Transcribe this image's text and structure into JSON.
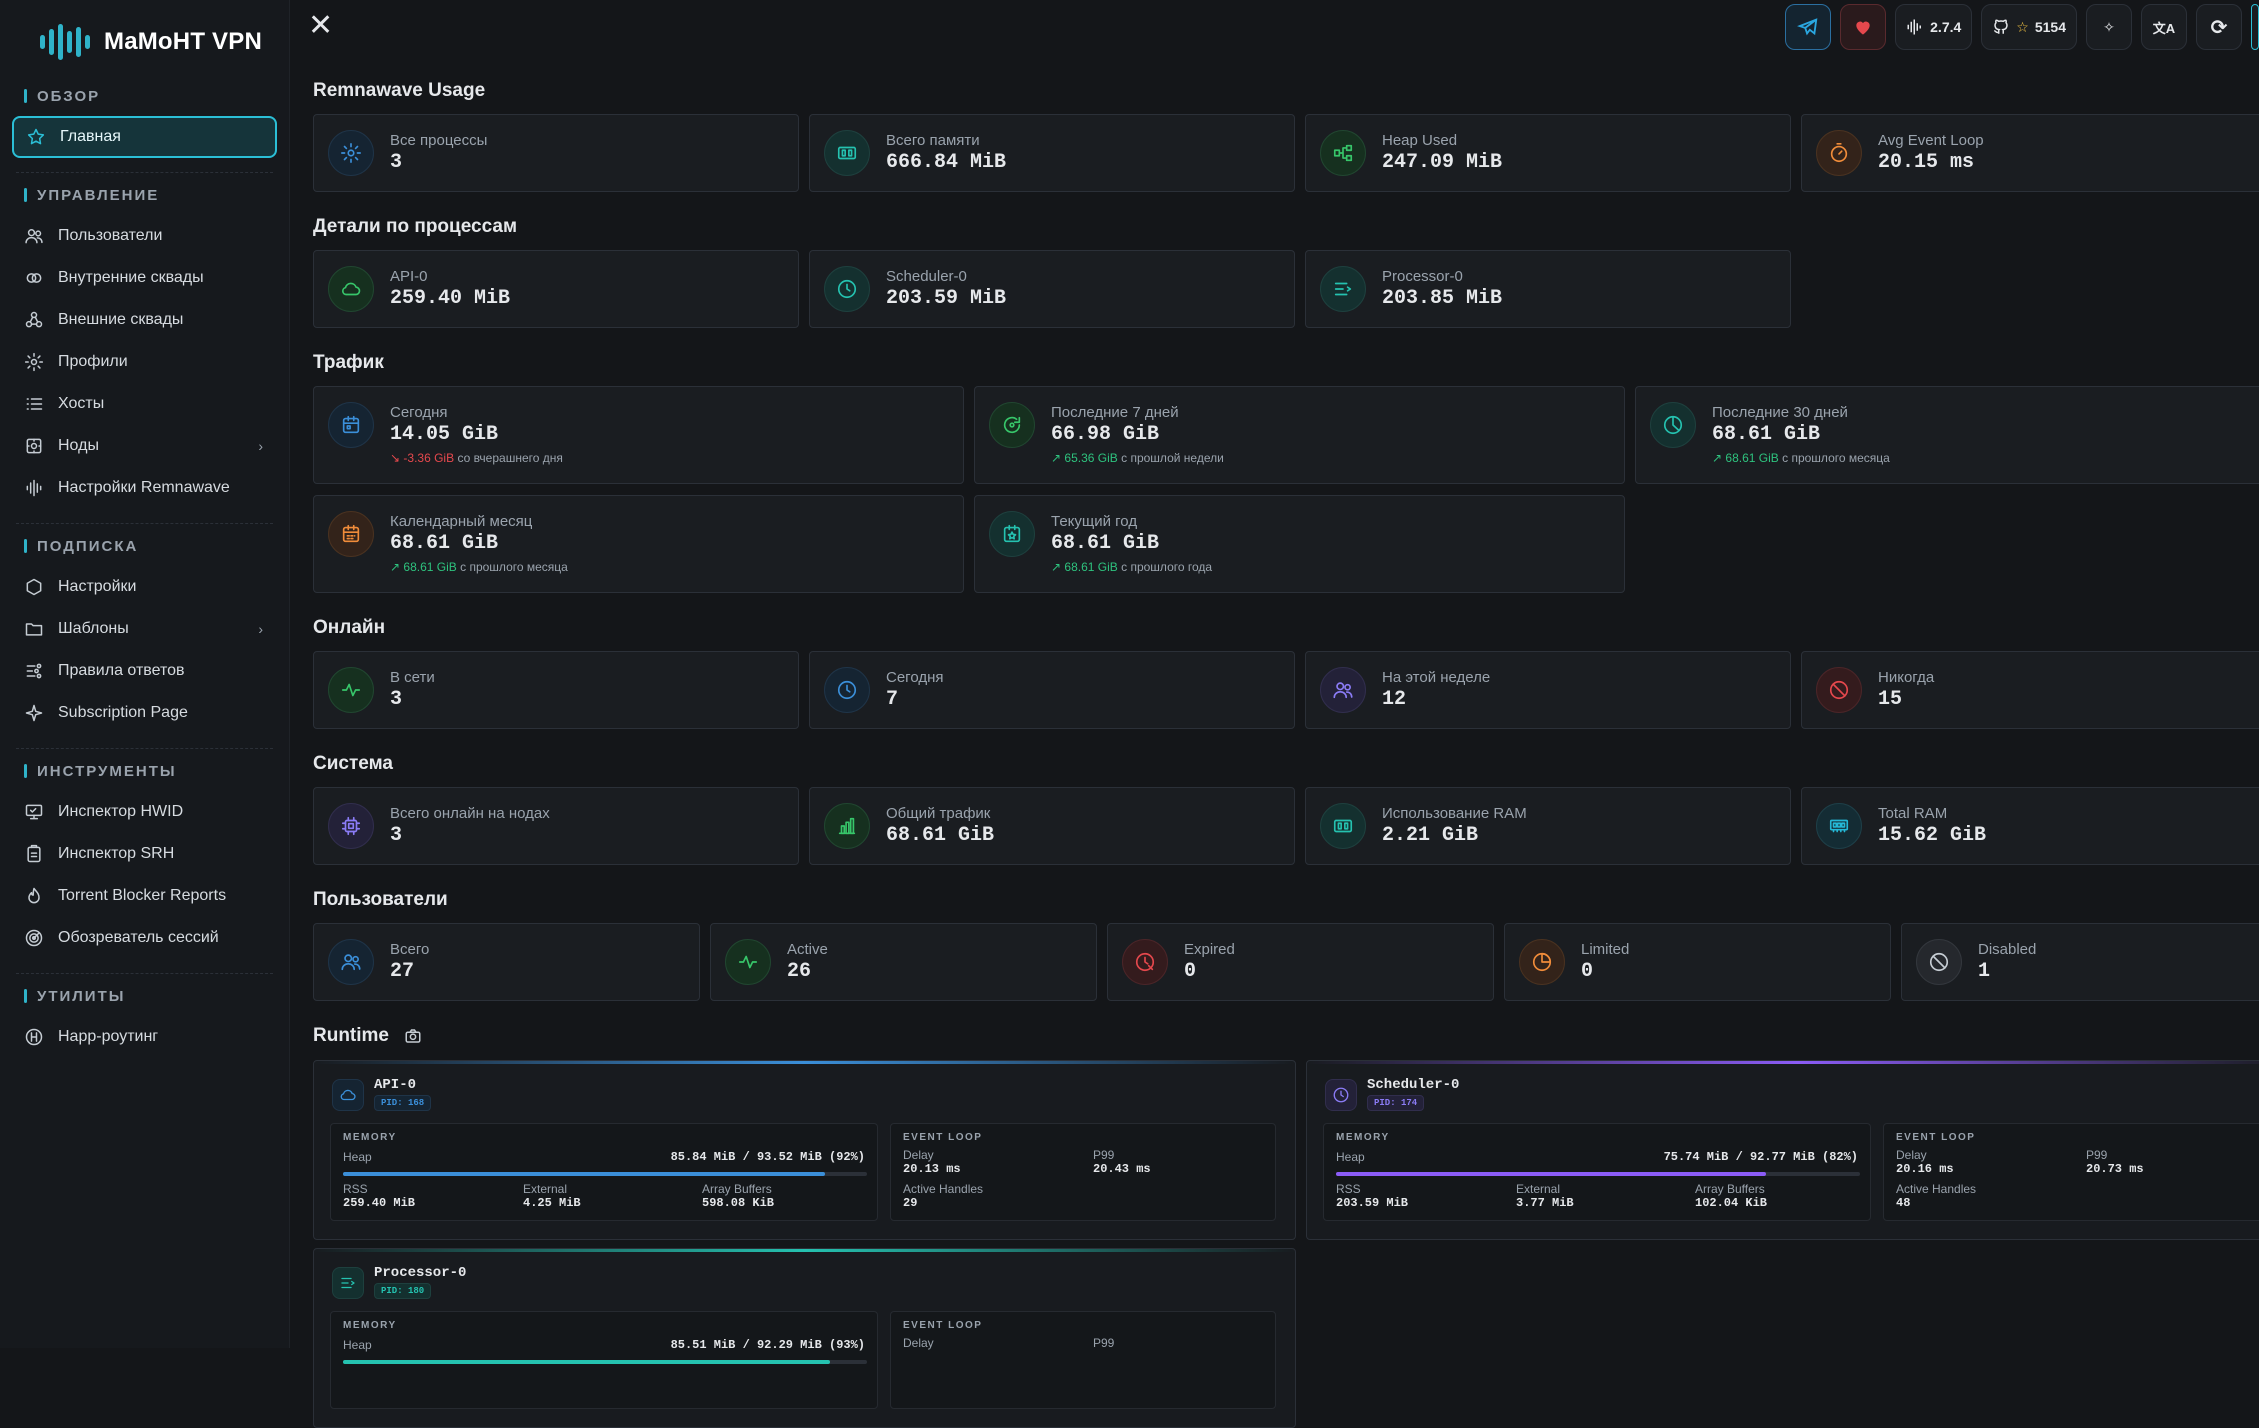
{
  "app": {
    "title": "MaMoHT VPN"
  },
  "sidebar": {
    "sections": [
      {
        "title": "ОБЗОР",
        "items": [
          {
            "label": "Главная",
            "icon": "star-icon",
            "active": true
          }
        ]
      },
      {
        "title": "УПРАВЛЕНИЕ",
        "items": [
          {
            "label": "Пользователи",
            "icon": "users-icon"
          },
          {
            "label": "Внутренние сквады",
            "icon": "circles-icon"
          },
          {
            "label": "Внешние сквады",
            "icon": "share-icon"
          },
          {
            "label": "Профили",
            "icon": "settings-icon"
          },
          {
            "label": "Хосты",
            "icon": "list-icon"
          },
          {
            "label": "Ноды",
            "icon": "server-icon",
            "chevron": true
          },
          {
            "label": "Настройки Remnawave",
            "icon": "bars-icon"
          }
        ]
      },
      {
        "title": "ПОДПИСКА",
        "items": [
          {
            "label": "Настройки",
            "icon": "hexagon-icon"
          },
          {
            "label": "Шаблоны",
            "icon": "folder-icon",
            "chevron": true
          },
          {
            "label": "Правила ответов",
            "icon": "rules-icon"
          },
          {
            "label": "Subscription Page",
            "icon": "sparkle-icon"
          }
        ]
      },
      {
        "title": "ИНСТРУМЕНТЫ",
        "items": [
          {
            "label": "Инспектор HWID",
            "icon": "monitor-icon"
          },
          {
            "label": "Инспектор SRH",
            "icon": "clipboard-icon"
          },
          {
            "label": "Torrent Blocker Reports",
            "icon": "flame-icon"
          },
          {
            "label": "Обозреватель сессий",
            "icon": "radar-icon"
          }
        ]
      },
      {
        "title": "УТИЛИТЫ",
        "items": [
          {
            "label": "Happ-роутинг",
            "icon": "happ-icon"
          }
        ]
      }
    ]
  },
  "topbar": {
    "version": "2.7.4",
    "stars": "5154"
  },
  "sections": {
    "usage": "Remnawave Usage",
    "processes": "Детали по процессам",
    "traffic": "Трафик",
    "online": "Онлайн",
    "system": "Система",
    "users": "Пользователи",
    "runtime": "Runtime"
  },
  "usage": [
    {
      "label": "Все процессы",
      "value": "3",
      "icon": "settings-icon"
    },
    {
      "label": "Всего памяти",
      "value": "666.84 MiB",
      "icon": "memory-icon"
    },
    {
      "label": "Heap Used",
      "value": "247.09 MiB",
      "icon": "nodes-icon"
    },
    {
      "label": "Avg Event Loop",
      "value": "20.15 ms",
      "icon": "timer-icon"
    }
  ],
  "processes": [
    {
      "label": "API-0",
      "value": "259.40 MiB",
      "icon": "cloud-icon"
    },
    {
      "label": "Scheduler-0",
      "value": "203.59 MiB",
      "icon": "clock-icon"
    },
    {
      "label": "Processor-0",
      "value": "203.85 MiB",
      "icon": "queue-icon"
    }
  ],
  "traffic": [
    {
      "label": "Сегодня",
      "value": "14.05 GiB",
      "delta": "-3.36 GiB",
      "delta_text": "со вчерашнего дня",
      "trend": "down",
      "icon": "calendar-icon"
    },
    {
      "label": "Последние 7 дней",
      "value": "66.98 GiB",
      "delta": "65.36 GiB",
      "delta_text": "с прошлой недели",
      "trend": "up",
      "icon": "refresh-icon"
    },
    {
      "label": "Последние 30 дней",
      "value": "68.61 GiB",
      "delta": "68.61 GiB",
      "delta_text": "с прошлого месяца",
      "trend": "up",
      "icon": "pie-icon"
    },
    {
      "label": "Календарный месяц",
      "value": "68.61 GiB",
      "delta": "68.61 GiB",
      "delta_text": "с прошлого месяца",
      "trend": "up",
      "icon": "calendar-month-icon"
    },
    {
      "label": "Текущий год",
      "value": "68.61 GiB",
      "delta": "68.61 GiB",
      "delta_text": "с прошлого года",
      "trend": "up",
      "icon": "calendar-star-icon"
    }
  ],
  "online": [
    {
      "label": "В сети",
      "value": "3",
      "icon": "pulse-icon"
    },
    {
      "label": "Сегодня",
      "value": "7",
      "icon": "clock-icon"
    },
    {
      "label": "На этой неделе",
      "value": "12",
      "icon": "users-icon"
    },
    {
      "label": "Никогда",
      "value": "15",
      "icon": "ban-icon"
    }
  ],
  "system": [
    {
      "label": "Всего онлайн на нодах",
      "value": "3",
      "icon": "cpu-icon"
    },
    {
      "label": "Общий трафик",
      "value": "68.61 GiB",
      "icon": "chart-icon"
    },
    {
      "label": "Использование RAM",
      "value": "2.21 GiB",
      "icon": "memory-icon"
    },
    {
      "label": "Total RAM",
      "value": "15.62 GiB",
      "icon": "ram-icon"
    }
  ],
  "users": [
    {
      "label": "Всего",
      "value": "27",
      "icon": "users-icon"
    },
    {
      "label": "Active",
      "value": "26",
      "icon": "pulse-icon"
    },
    {
      "label": "Expired",
      "value": "0",
      "icon": "expired-icon"
    },
    {
      "label": "Limited",
      "value": "0",
      "icon": "limited-icon"
    },
    {
      "label": "Disabled",
      "value": "1",
      "icon": "ban-icon"
    }
  ],
  "runtime": [
    {
      "name": "API-0",
      "pid": "PID: 168",
      "mem_title": "MEMORY",
      "heap_label": "Heap",
      "heap_value": "85.84 MiB / 93.52 MiB (92%)",
      "heap_pct": 0.92,
      "rss_label": "RSS",
      "rss": "259.40 MiB",
      "ext_label": "External",
      "ext": "4.25 MiB",
      "ab_label": "Array Buffers",
      "ab": "598.08 KiB",
      "ev_title": "EVENT LOOP",
      "delay_label": "Delay",
      "delay": "20.13 ms",
      "p99_label": "P99",
      "p99": "20.43 ms",
      "handles_label": "Active Handles",
      "handles": "29",
      "accent": "#3b8fd9"
    },
    {
      "name": "Scheduler-0",
      "pid": "PID: 174",
      "mem_title": "MEMORY",
      "heap_label": "Heap",
      "heap_value": "75.74 MiB / 92.77 MiB (82%)",
      "heap_pct": 0.82,
      "rss_label": "RSS",
      "rss": "203.59 MiB",
      "ext_label": "External",
      "ext": "3.77 MiB",
      "ab_label": "Array Buffers",
      "ab": "102.04 KiB",
      "ev_title": "EVENT LOOP",
      "delay_label": "Delay",
      "delay": "20.16 ms",
      "p99_label": "P99",
      "p99": "20.73 ms",
      "handles_label": "Active Handles",
      "handles": "48",
      "accent": "#8b5cf6"
    },
    {
      "name": "Processor-0",
      "pid": "PID: 180",
      "mem_title": "MEMORY",
      "heap_label": "Heap",
      "heap_value": "85.51 MiB / 92.29 MiB (93%)",
      "heap_pct": 0.93,
      "ev_title": "EVENT LOOP",
      "delay_label": "Delay",
      "p99_label": "P99",
      "accent": "#25c2b0"
    }
  ]
}
